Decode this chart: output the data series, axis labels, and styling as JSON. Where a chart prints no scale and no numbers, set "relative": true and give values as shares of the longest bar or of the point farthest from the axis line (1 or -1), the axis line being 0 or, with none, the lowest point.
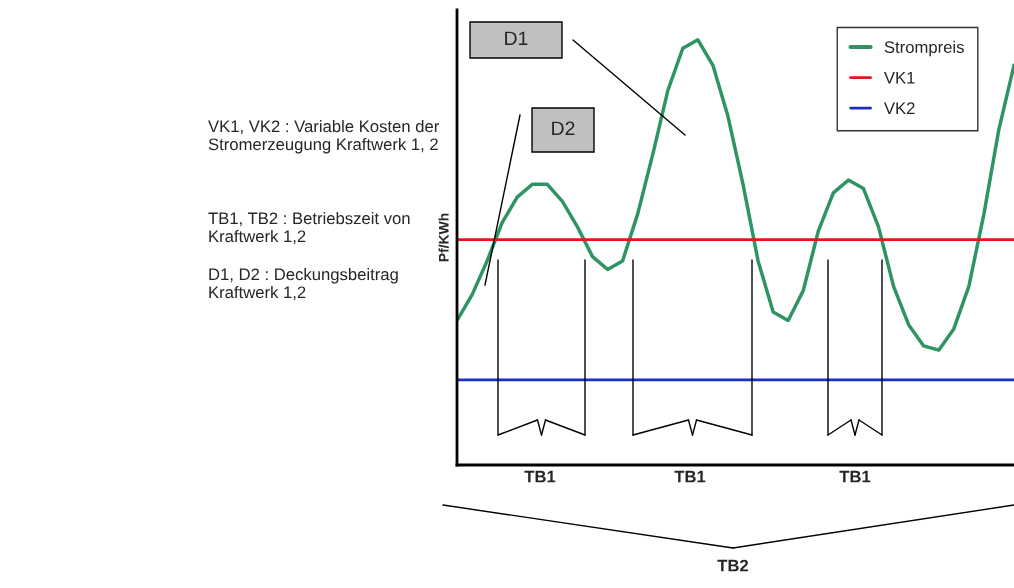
{
  "chart_data": {
    "type": "line",
    "relative": true,
    "ylabel": "Pf/KWh",
    "categories": [
      null,
      null,
      null,
      null,
      null,
      null,
      null,
      null,
      null,
      null,
      null,
      null,
      null,
      null,
      null,
      null,
      null,
      null,
      null,
      null,
      null,
      null,
      null,
      null,
      null,
      null,
      null,
      null,
      null,
      null,
      null,
      null,
      null,
      null,
      null,
      null,
      null,
      null
    ],
    "series": [
      {
        "name": "Strompreis",
        "color": "#2e9464",
        "values": [
          0.34,
          0.4,
          0.48,
          0.57,
          0.63,
          0.66,
          0.66,
          0.62,
          0.56,
          0.49,
          0.46,
          0.48,
          0.59,
          0.73,
          0.88,
          0.98,
          1,
          0.94,
          0.82,
          0.66,
          0.48,
          0.36,
          0.34,
          0.41,
          0.55,
          0.64,
          0.67,
          0.65,
          0.56,
          0.42,
          0.33,
          0.28,
          0.27,
          0.32,
          0.42,
          0.59,
          0.79,
          0.94
        ]
      }
    ],
    "ref_lines": [
      {
        "axis": "y",
        "value": 0.53,
        "label": "VK1",
        "color": "#e8141b"
      },
      {
        "axis": "y",
        "value": 0.2,
        "label": "VK2",
        "color": "#1c2fc4"
      }
    ],
    "legend": "top right",
    "annotations": [
      "VK1, VK2 : Variable Kosten der Stromerzeugung Kraftwerk 1, 2",
      "TB1, TB2 : Betriebszeit von Kraftwerk 1,2",
      "D1, D2 : Deckungsbeitrag Kraftwerk 1,2",
      "D1",
      "D2",
      "TB1",
      "TB1",
      "TB1",
      "TB2"
    ]
  }
}
